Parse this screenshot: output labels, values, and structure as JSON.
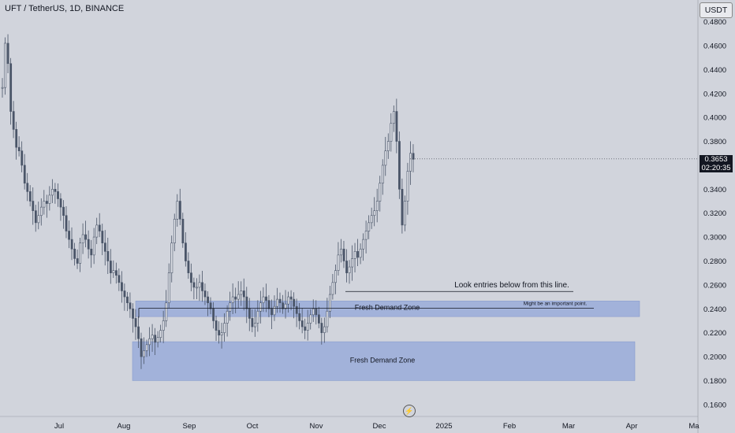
{
  "header": {
    "title": "UFT / TetherUS, 1D, BINANCE",
    "currency": "USDT",
    "last_price": "0.3653",
    "countdown": "02:20:35"
  },
  "colors": {
    "background": "#d1d4dc",
    "candle": "#4a5568",
    "zone_fill": "#8fa4d8",
    "price_label_bg": "#131722"
  },
  "annotations": {
    "upper_zone_label": "Fresh Demand Zone",
    "lower_zone_label": "Fresh Demand Zone",
    "entry_note": "Look entries below from this line.",
    "important_note": "Might be an important point."
  },
  "chart_data": {
    "type": "candlestick",
    "title": "UFT / TetherUS, 1D, BINANCE",
    "x_ticks": [
      "Jul",
      "Aug",
      "Sep",
      "Oct",
      "Nov",
      "Dec",
      "2025",
      "Feb",
      "Mar",
      "Apr",
      "Ma"
    ],
    "y_ticks": [
      "0.4800",
      "0.4600",
      "0.4400",
      "0.4200",
      "0.4000",
      "0.3800",
      "0.3600",
      "0.3400",
      "0.3200",
      "0.3000",
      "0.2800",
      "0.2600",
      "0.2400",
      "0.2200",
      "0.2000",
      "0.1800",
      "0.1600"
    ],
    "ylim": [
      0.15,
      0.485
    ],
    "last_price": 0.3653,
    "zones": [
      {
        "label": "Fresh Demand Zone",
        "from": 0.2335,
        "to": 0.2465
      },
      {
        "label": "Fresh Demand Zone",
        "from": 0.18,
        "to": 0.2125
      }
    ],
    "lines": [
      {
        "label": "Might be an important point.",
        "price": 0.2405
      },
      {
        "label": "Look entries below from this line.",
        "price": 0.2545
      }
    ],
    "ohlc_path": [
      0.425,
      0.462,
      0.445,
      0.405,
      0.39,
      0.375,
      0.372,
      0.36,
      0.345,
      0.338,
      0.33,
      0.322,
      0.312,
      0.318,
      0.325,
      0.33,
      0.328,
      0.335,
      0.34,
      0.338,
      0.332,
      0.325,
      0.318,
      0.305,
      0.298,
      0.29,
      0.282,
      0.278,
      0.295,
      0.302,
      0.298,
      0.29,
      0.285,
      0.3,
      0.31,
      0.305,
      0.295,
      0.288,
      0.28,
      0.27,
      0.272,
      0.268,
      0.262,
      0.255,
      0.25,
      0.245,
      0.24,
      0.232,
      0.225,
      0.215,
      0.2,
      0.205,
      0.21,
      0.215,
      0.218,
      0.212,
      0.216,
      0.222,
      0.23,
      0.245,
      0.27,
      0.295,
      0.315,
      0.33,
      0.315,
      0.295,
      0.28,
      0.27,
      0.262,
      0.258,
      0.258,
      0.262,
      0.255,
      0.25,
      0.245,
      0.24,
      0.23,
      0.222,
      0.218,
      0.22,
      0.228,
      0.238,
      0.245,
      0.25,
      0.248,
      0.252,
      0.255,
      0.25,
      0.24,
      0.232,
      0.225,
      0.228,
      0.238,
      0.245,
      0.25,
      0.247,
      0.24,
      0.235,
      0.242,
      0.248,
      0.245,
      0.24,
      0.244,
      0.25,
      0.248,
      0.242,
      0.236,
      0.23,
      0.225,
      0.222,
      0.228,
      0.235,
      0.24,
      0.235,
      0.228,
      0.22,
      0.225,
      0.238,
      0.252,
      0.262,
      0.272,
      0.285,
      0.29,
      0.28,
      0.27,
      0.275,
      0.282,
      0.288,
      0.283,
      0.29,
      0.298,
      0.305,
      0.312,
      0.318,
      0.322,
      0.33,
      0.345,
      0.36,
      0.372,
      0.38,
      0.395,
      0.405,
      0.38,
      0.34,
      0.31,
      0.33,
      0.355,
      0.37,
      0.365
    ]
  }
}
